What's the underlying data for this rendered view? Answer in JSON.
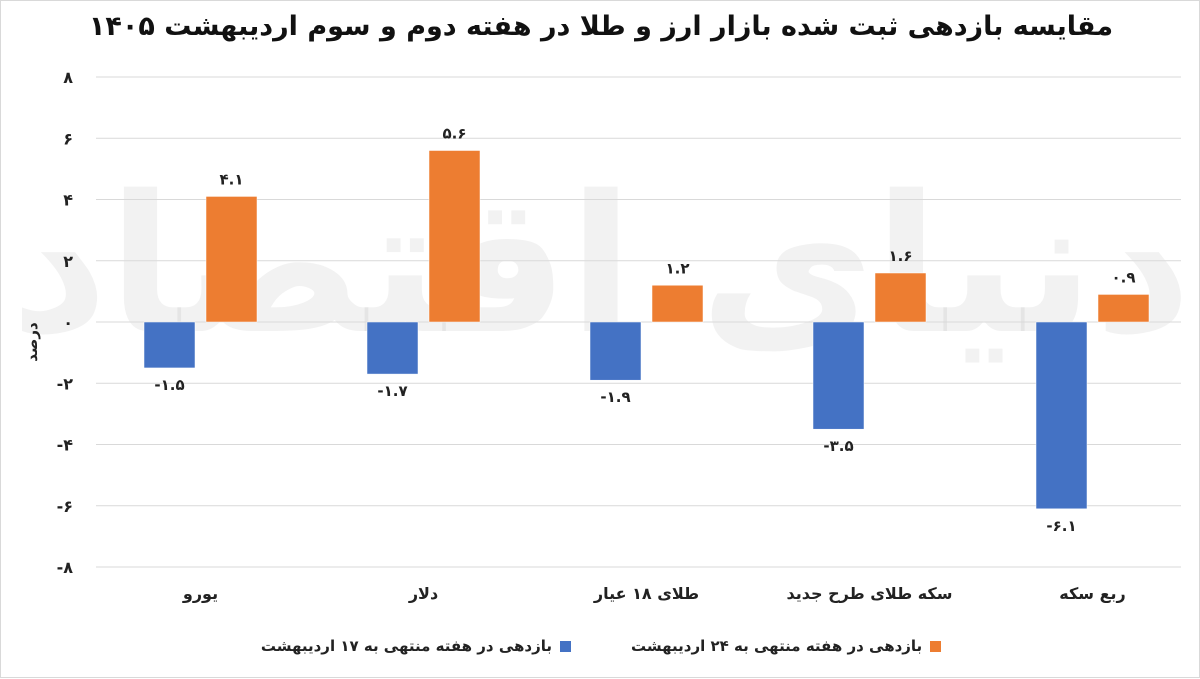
{
  "chart_data": {
    "type": "bar",
    "title": "مقایسه بازدهی ثبت شده بازار ارز و طلا در هفته دوم و سوم اردیبهشت ۱۴۰۵",
    "ylabel": "درصد",
    "xlabel": "",
    "ylim": [
      -8,
      8
    ],
    "yticks": [
      8,
      6,
      4,
      2,
      0,
      -2,
      -4,
      -6,
      -8
    ],
    "ytick_labels": [
      "۸",
      "۶",
      "۴",
      "۲",
      "۰",
      "-۲",
      "-۴",
      "-۶",
      "-۸"
    ],
    "grid": true,
    "legend_position": "bottom",
    "categories": [
      "یورو",
      "دلار",
      "طلای ۱۸ عیار",
      "سکه طلای طرح جدید",
      "ربع سکه"
    ],
    "series": [
      {
        "name": "بازدهی در هفته منتهی به ۱۷ اردیبهشت",
        "color": "#4472C4",
        "values": [
          -1.5,
          -1.7,
          -1.9,
          -3.5,
          -6.1
        ],
        "labels": [
          "-۱.۵",
          "-۱.۷",
          "-۱.۹",
          "-۳.۵",
          "-۶.۱"
        ]
      },
      {
        "name": "بازدهی در هفته منتهی به ۲۴ اردیبهشت",
        "color": "#ED7D31",
        "values": [
          4.1,
          5.6,
          1.2,
          1.6,
          0.9
        ],
        "labels": [
          "۴.۱",
          "۵.۶",
          "۱.۲",
          "۱.۶",
          "۰.۹"
        ]
      }
    ],
    "watermark": "دنیای اقتصاد"
  }
}
